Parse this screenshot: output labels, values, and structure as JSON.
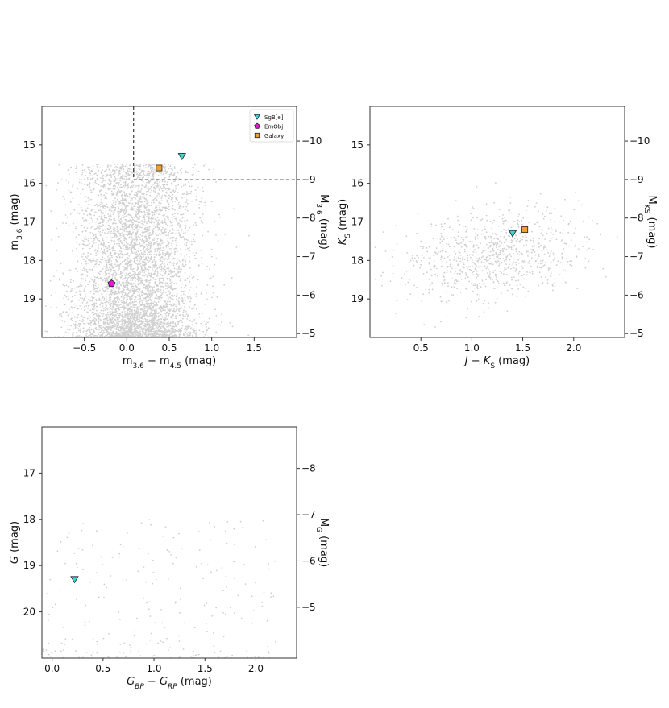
{
  "chart_data": [
    {
      "type": "scatter",
      "id": "p1",
      "xlabel": "m3.6 − m4.5 (mag)",
      "ylabel": "m3.6 (mag)",
      "y2label": "M3.6 (mag)",
      "xlim": [
        -1.0,
        2.0
      ],
      "ylim_inverted": [
        20.0,
        14.0
      ],
      "y2_offset": -24.9,
      "xticks": [
        "−0.5",
        "0.0",
        "0.5",
        "1.0",
        "1.5"
      ],
      "xtick_values": [
        -0.5,
        0.0,
        0.5,
        1.0,
        1.5
      ],
      "yticks": [
        "15",
        "16",
        "17",
        "18",
        "19"
      ],
      "ytick_values": [
        15,
        16,
        17,
        18,
        19
      ],
      "y2ticks": [
        "−10",
        "−9",
        "−8",
        "−7",
        "−6",
        "−5"
      ],
      "y2tick_values": [
        -10,
        -9,
        -8,
        -7,
        -6,
        -5
      ],
      "background_cloud": {
        "description_count": 6000,
        "color": "#cfcfcf",
        "center_x": 0.1,
        "spread_x": 0.35,
        "y_from": 15.5,
        "y_to": 20.0
      },
      "cut_lines": {
        "vertical_x": 0.08,
        "horizontal_y": 15.9
      },
      "series": [
        {
          "name": "SgB[e]",
          "marker": "triangle-down",
          "color": "#3fd3d3",
          "points": [
            [
              0.65,
              15.3
            ]
          ]
        },
        {
          "name": "EmObj",
          "marker": "pentagon",
          "color": "#e01ad8",
          "points": [
            [
              -0.18,
              18.6
            ]
          ]
        },
        {
          "name": "Galaxy",
          "marker": "square",
          "color": "#f0a030",
          "points": [
            [
              0.38,
              15.6
            ]
          ]
        }
      ],
      "legend": {
        "placement": "top-right",
        "entries": [
          "SgB[e]",
          "EmObj",
          "Galaxy"
        ]
      }
    },
    {
      "type": "scatter",
      "id": "p2",
      "xlabel": "J − KS (mag)",
      "ylabel": "KS (mag)",
      "y2label": "MKS (mag)",
      "xlim": [
        0.0,
        2.5
      ],
      "ylim_inverted": [
        20.0,
        14.0
      ],
      "y2_offset": -24.9,
      "xticks": [
        "0.5",
        "1.0",
        "1.5",
        "2.0"
      ],
      "xtick_values": [
        0.5,
        1.0,
        1.5,
        2.0
      ],
      "yticks": [
        "15",
        "16",
        "17",
        "18",
        "19"
      ],
      "ytick_values": [
        15,
        16,
        17,
        18,
        19
      ],
      "y2ticks": [
        "−10",
        "−9",
        "−8",
        "−7",
        "−6",
        "−5"
      ],
      "y2tick_values": [
        -10,
        -9,
        -8,
        -7,
        -6,
        -5
      ],
      "background_cloud": {
        "color": "#cfcfcf",
        "center_x": 1.2,
        "spread_x": 0.45,
        "y_from": 15.0,
        "y_to": 19.0
      },
      "series": [
        {
          "name": "SgB[e]",
          "marker": "triangle-down",
          "color": "#3fd3d3",
          "points": [
            [
              1.4,
              17.3
            ]
          ]
        },
        {
          "name": "Galaxy",
          "marker": "square",
          "color": "#f0a030",
          "points": [
            [
              1.52,
              17.2
            ]
          ]
        }
      ]
    },
    {
      "type": "scatter",
      "id": "p3",
      "xlabel": "GBP − GRP (mag)",
      "ylabel": "G (mag)",
      "y2label": "MG (mag)",
      "xlim": [
        -0.1,
        2.4
      ],
      "ylim_inverted": [
        21.0,
        16.0
      ],
      "y2_offset": -24.9,
      "xticks": [
        "0.0",
        "0.5",
        "1.0",
        "1.5",
        "2.0"
      ],
      "xtick_values": [
        0.0,
        0.5,
        1.0,
        1.5,
        2.0
      ],
      "yticks": [
        "17",
        "18",
        "19",
        "20"
      ],
      "ytick_values": [
        17,
        18,
        19,
        20
      ],
      "y2ticks": [
        "−8",
        "−7",
        "−6",
        "−5"
      ],
      "y2tick_values": [
        -8,
        -7,
        -6,
        -5
      ],
      "background_cloud": {
        "color": "#cfcfcf",
        "center_x": 1.0,
        "spread_x": 0.6,
        "y_from": 18.0,
        "y_to": 21.0
      },
      "series": [
        {
          "name": "SgB[e]",
          "marker": "triangle-down",
          "color": "#3fd3d3",
          "points": [
            [
              0.22,
              19.3
            ]
          ]
        }
      ]
    }
  ]
}
